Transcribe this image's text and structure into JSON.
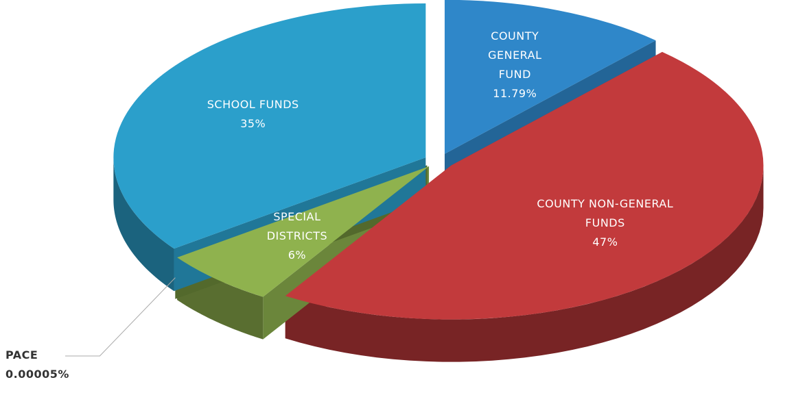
{
  "chart_data": {
    "type": "pie",
    "categories": [
      "COUNTY GENERAL FUND",
      "COUNTY NON-GENERAL FUNDS",
      "SPECIAL DISTRICTS",
      "PACE",
      "SCHOOL FUNDS"
    ],
    "values": [
      11.79,
      47,
      6,
      5e-05,
      35
    ],
    "value_labels": [
      "11.79%",
      "47%",
      "6%",
      "0.00005%",
      "35%"
    ],
    "colors": [
      "#2f87c9",
      "#c23a3c",
      "#8fb24e",
      "#6f8c3a",
      "#2b9fcb"
    ]
  }
}
